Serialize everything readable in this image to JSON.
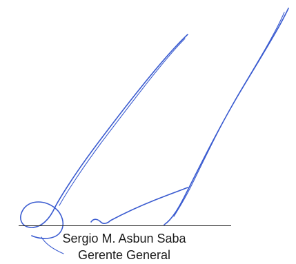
{
  "signature": {
    "name": "Sergio M. Asbun Saba",
    "title": "Gerente General",
    "ink_color": "#3a5bd0",
    "line_color": "#2a2a2a"
  }
}
